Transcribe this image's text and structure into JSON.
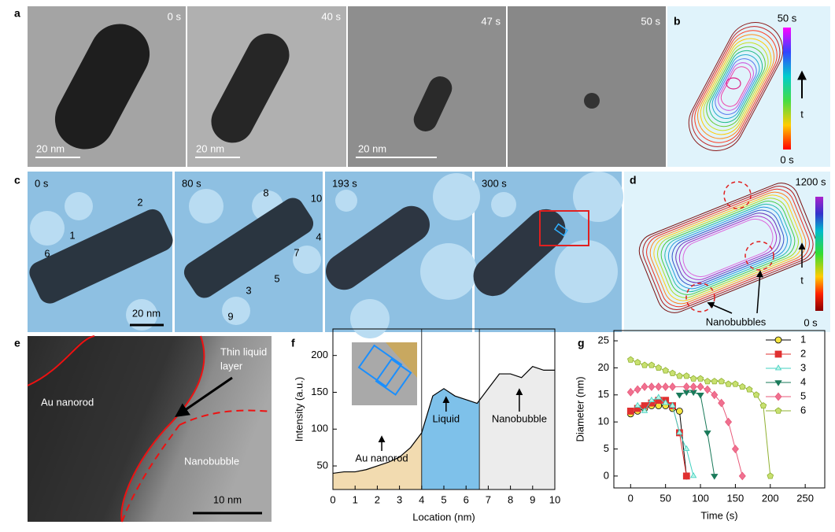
{
  "panel_labels": [
    "a",
    "b",
    "c",
    "d",
    "e",
    "f",
    "g"
  ],
  "panel_a": {
    "times": [
      "0 s",
      "40 s",
      "47 s",
      "50 s"
    ],
    "scale_bar": "20 nm"
  },
  "panel_b": {
    "top": "50 s",
    "bottom": "0 s",
    "axis": "t"
  },
  "panel_c": {
    "times": [
      "0 s",
      "80 s",
      "193 s",
      "300 s"
    ],
    "bubble_ids": [
      "1",
      "2",
      "3",
      "4",
      "5",
      "6",
      "7",
      "8",
      "9",
      "10"
    ],
    "scale_bar": "20 nm"
  },
  "panel_d": {
    "top": "1200 s",
    "bottom": "0 s",
    "axis": "t",
    "annotation": "Nanobubbles"
  },
  "panel_e": {
    "liquid_label": [
      "Thin liquid",
      "layer"
    ],
    "rod_label": "Au nanorod",
    "bubble_label": "Nanobubble",
    "scale_bar": "10 nm"
  },
  "chart_data": [
    {
      "type": "line",
      "x_label": "Location (nm)",
      "y_label": "Intensity (a.u.)",
      "x": [
        0,
        0.5,
        1,
        1.5,
        2,
        2.5,
        3,
        3.5,
        4,
        4.5,
        5,
        5.5,
        6,
        6.5,
        7,
        7.5,
        8,
        8.5,
        9,
        9.5,
        10
      ],
      "values": [
        40,
        42,
        42,
        45,
        50,
        55,
        62,
        75,
        95,
        145,
        155,
        145,
        140,
        135,
        155,
        175,
        175,
        170,
        185,
        180,
        180
      ],
      "color": "#000000",
      "xlim": [
        0,
        10
      ],
      "ylim": [
        18,
        236
      ],
      "xticks": [
        0,
        1,
        2,
        3,
        4,
        5,
        6,
        7,
        8,
        9,
        10
      ],
      "yticks": [
        50,
        100,
        150,
        200
      ],
      "regions": [
        {
          "label": "Au nanorod",
          "from": 0,
          "to": 4,
          "color": "#f2dbb0"
        },
        {
          "label": "Liquid",
          "from": 4,
          "to": 6.6,
          "color": "#7ec1ea"
        },
        {
          "label": "Nanobubble",
          "from": 6.6,
          "to": 10,
          "color": "#ececec"
        }
      ]
    },
    {
      "type": "line",
      "x_label": "Time (s)",
      "y_label": "Diameter (nm)",
      "xlim": [
        -24,
        278
      ],
      "ylim": [
        -2.2,
        26.9
      ],
      "xticks": [
        0,
        50,
        100,
        150,
        200,
        250
      ],
      "yticks": [
        0,
        5,
        10,
        15,
        20,
        25
      ],
      "legend": "upper right",
      "series": [
        {
          "name": "1",
          "line_color": "#000000",
          "color": "#f5e642",
          "marker": "circle",
          "x": [
            0,
            10,
            20,
            30,
            40,
            50,
            60,
            70,
            80
          ],
          "values": [
            11.5,
            12,
            12.5,
            13,
            13,
            13,
            12.5,
            12,
            0
          ]
        },
        {
          "name": "2",
          "line_color": "#e03030",
          "color": "#e03030",
          "marker": "square",
          "x": [
            0,
            10,
            20,
            30,
            40,
            50,
            60,
            70,
            80
          ],
          "values": [
            12,
            12.5,
            13,
            13.5,
            14,
            14,
            13,
            8,
            0
          ]
        },
        {
          "name": "3",
          "line_color": "#40d0c0",
          "color": "#b8f4e6",
          "marker": "triangle",
          "x": [
            10,
            20,
            30,
            40,
            50,
            60,
            70,
            80,
            90
          ],
          "values": [
            13,
            12,
            14,
            14.5,
            13.5,
            13,
            8,
            5,
            0
          ]
        },
        {
          "name": "4",
          "line_color": "#1a7a5a",
          "color": "#1a7a5a",
          "marker": "triangle-down",
          "x": [
            70,
            80,
            90,
            100,
            110,
            120
          ],
          "values": [
            15,
            15.5,
            15.5,
            15,
            8,
            0
          ]
        },
        {
          "name": "5",
          "line_color": "#e85a7a",
          "color": "#f07090",
          "marker": "diamond",
          "x": [
            0,
            10,
            20,
            30,
            40,
            50,
            60,
            80,
            90,
            100,
            110,
            120,
            130,
            140,
            150,
            160
          ],
          "values": [
            15.5,
            16,
            16.5,
            16.5,
            16.5,
            16.5,
            16.5,
            16.5,
            16.5,
            16.5,
            16,
            15,
            13.5,
            10,
            5,
            0
          ]
        },
        {
          "name": "6",
          "line_color": "#8fb030",
          "color": "#c8e070",
          "marker": "pentagon",
          "x": [
            0,
            10,
            20,
            30,
            40,
            50,
            60,
            70,
            80,
            90,
            100,
            110,
            120,
            130,
            140,
            150,
            160,
            170,
            180,
            190,
            200
          ],
          "values": [
            21.5,
            21,
            20.5,
            20.5,
            20,
            19.5,
            19,
            18.5,
            18.5,
            18,
            18,
            17.5,
            17.5,
            17.5,
            17,
            17,
            16.5,
            16,
            15,
            13,
            0
          ]
        }
      ]
    }
  ]
}
